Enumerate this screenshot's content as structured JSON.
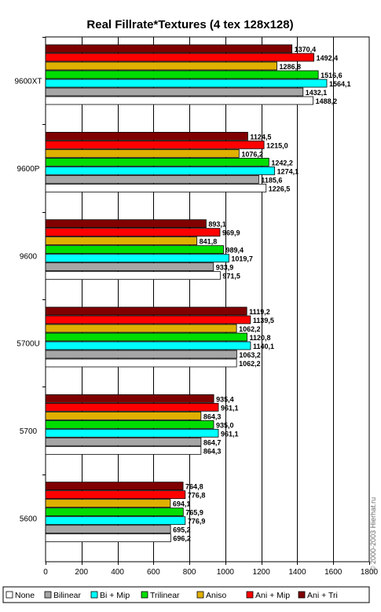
{
  "chart_data": {
    "type": "bar",
    "orientation": "horizontal",
    "title": "Real Fillrate*Textures (4 tex 128x128)",
    "categories": [
      "9600XT",
      "9600P",
      "9600",
      "5700U",
      "5700",
      "5600"
    ],
    "xlim": [
      0,
      1800
    ],
    "xticks": [
      0,
      200,
      400,
      600,
      800,
      1000,
      1200,
      1400,
      1600,
      1800
    ],
    "grid": "vertical",
    "legend_position": "bottom",
    "series": [
      {
        "name": "Ani + Tri",
        "color": "#800000",
        "values": [
          1370.4,
          1124.5,
          893.1,
          1119.2,
          935.4,
          764.8
        ],
        "labels": [
          "1370,4",
          "1124,5",
          "893,1",
          "1119,2",
          "935,4",
          "764,8"
        ]
      },
      {
        "name": "Ani + Mip",
        "color": "#ff0000",
        "values": [
          1492.4,
          1215.0,
          969.9,
          1139.5,
          961.1,
          776.8
        ],
        "labels": [
          "1492,4",
          "1215,0",
          "969,9",
          "1139,5",
          "961,1",
          "776,8"
        ]
      },
      {
        "name": "Aniso",
        "color": "#e0b000",
        "values": [
          1286.8,
          1076.2,
          841.8,
          1062.2,
          864.3,
          694.1
        ],
        "labels": [
          "1286,8",
          "1076,2",
          "841,8",
          "1062,2",
          "864,3",
          "694,1"
        ]
      },
      {
        "name": "Trilinear",
        "color": "#00dd00",
        "values": [
          1516.6,
          1242.2,
          989.4,
          1120.8,
          935.0,
          765.9
        ],
        "labels": [
          "1516,6",
          "1242,2",
          "989,4",
          "1120,8",
          "935,0",
          "765,9"
        ]
      },
      {
        "name": "Bi + Mip",
        "color": "#00ffff",
        "values": [
          1564.1,
          1274.1,
          1019.7,
          1140.1,
          961.1,
          776.9
        ],
        "labels": [
          "1564,1",
          "1274,1",
          "1019,7",
          "1140,1",
          "961,1",
          "776,9"
        ]
      },
      {
        "name": "Bilinear",
        "color": "#a6a6a6",
        "values": [
          1432.1,
          1185.6,
          933.9,
          1063.2,
          864.7,
          695.2
        ],
        "labels": [
          "1432,1",
          "1185,6",
          "933,9",
          "1063,2",
          "864,7",
          "695,2"
        ]
      },
      {
        "name": "None",
        "color": "#ffffff",
        "values": [
          1488.2,
          1226.5,
          971.5,
          1062.2,
          864.3,
          696.2
        ],
        "labels": [
          "1488,2",
          "1226,5",
          "971,5",
          "1062,2",
          "864,3",
          "696,2"
        ]
      }
    ],
    "legend_order": [
      "None",
      "Bilinear",
      "Bi + Mip",
      "Trilinear",
      "Aniso",
      "Ani + Mip",
      "Ani + Tri"
    ]
  },
  "watermark": "© 2000-2003 Hierhat.ru"
}
